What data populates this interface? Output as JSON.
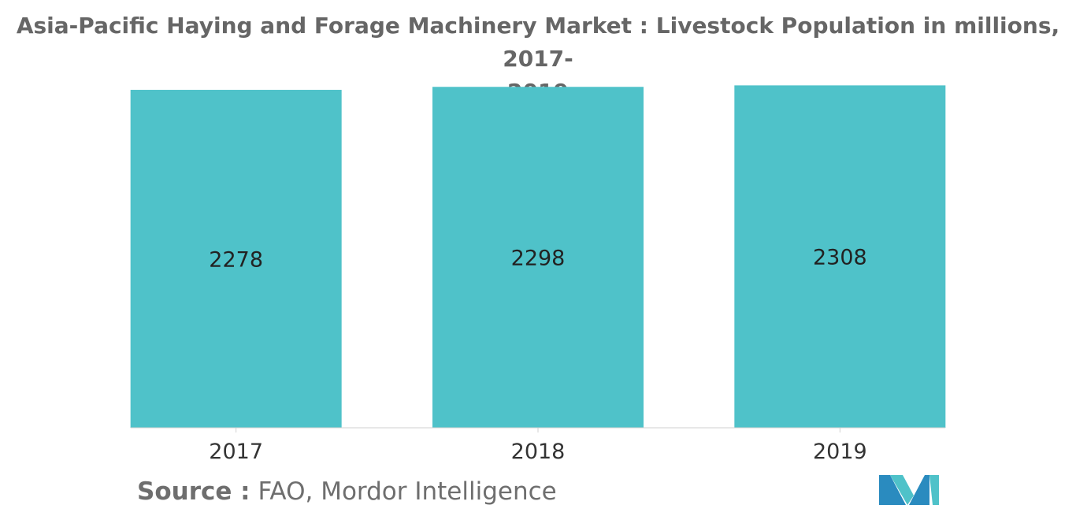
{
  "chart_data": {
    "type": "bar",
    "title_line1": "Asia-Pacific Haying and Forage Machinery Market : Livestock Population in millions, 2017-",
    "title_line2": "2019",
    "categories": [
      "2017",
      "2018",
      "2019"
    ],
    "values": [
      2278,
      2298,
      2308
    ],
    "data_labels": [
      "2278",
      "2298",
      "2308"
    ],
    "xlabel": "",
    "ylabel": "",
    "ylim": [
      0,
      2310
    ],
    "grid": false,
    "legend": "none",
    "bar_color": "#4fc2c9",
    "axis_color": "#d0d0d0"
  },
  "source": {
    "label": "Source :",
    "text": "FAO, Mordor Intelligence"
  },
  "logo": {
    "icon": "mordor-intelligence-logo-icon",
    "colors": [
      "#2a8bbf",
      "#4fc2c9"
    ]
  }
}
